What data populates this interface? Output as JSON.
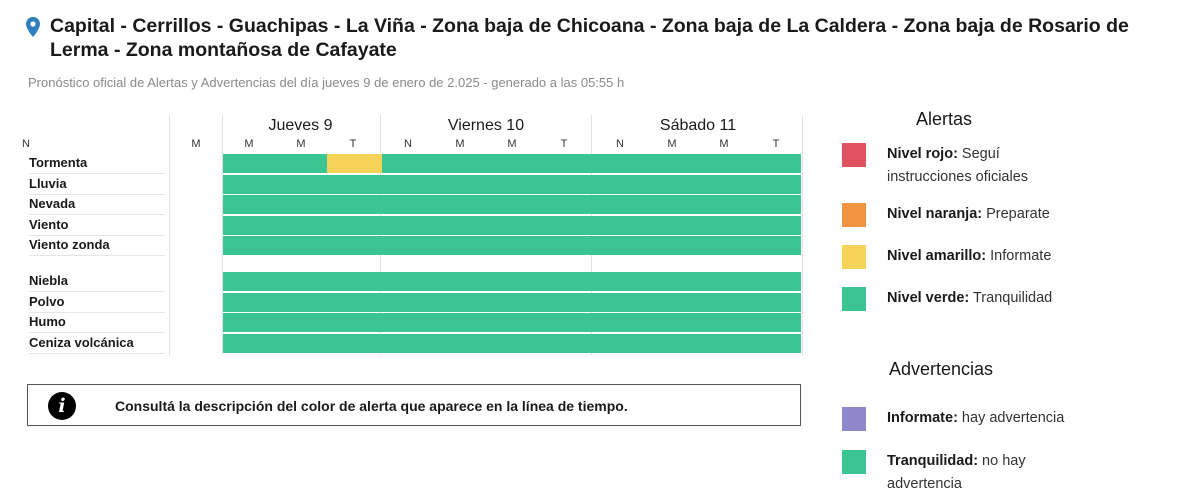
{
  "header": {
    "location_icon": "map-pin-icon",
    "title": "Capital - Cerrillos - Guachipas - La Viña - Zona baja de Chicoana - Zona baja de La Caldera - Zona baja de Rosario de Lerma - Zona montañosa de Cafayate",
    "subtitle": "Pronóstico oficial de Alertas y Advertencias del día jueves 9 de enero de 2.025 - generado a las 05:55 h"
  },
  "timeline": {
    "days": [
      {
        "label": "Jueves 9",
        "slots": [
          "M",
          "M",
          "T",
          "N"
        ]
      },
      {
        "label": "Viernes 10",
        "slots": [
          "M",
          "M",
          "T",
          "N"
        ]
      },
      {
        "label": "Sábado 11",
        "slots": [
          "M",
          "M",
          "T",
          "N"
        ]
      }
    ],
    "extra_slot": "M",
    "alert_rows": [
      {
        "label": "Tormenta",
        "levels": [
          "none",
          "verde",
          "verde",
          "amarillo",
          "verde",
          "verde",
          "verde",
          "verde",
          "verde",
          "verde",
          "verde",
          "verde"
        ]
      },
      {
        "label": "Lluvia",
        "levels": [
          "none",
          "verde",
          "verde",
          "verde",
          "verde",
          "verde",
          "verde",
          "verde",
          "verde",
          "verde",
          "verde",
          "verde"
        ]
      },
      {
        "label": "Nevada",
        "levels": [
          "none",
          "verde",
          "verde",
          "verde",
          "verde",
          "verde",
          "verde",
          "verde",
          "verde",
          "verde",
          "verde",
          "verde"
        ]
      },
      {
        "label": "Viento",
        "levels": [
          "none",
          "verde",
          "verde",
          "verde",
          "verde",
          "verde",
          "verde",
          "verde",
          "verde",
          "verde",
          "verde",
          "verde"
        ]
      },
      {
        "label": "Viento zonda",
        "levels": [
          "none",
          "verde",
          "verde",
          "verde",
          "verde",
          "verde",
          "verde",
          "verde",
          "verde",
          "verde",
          "verde",
          "verde"
        ]
      }
    ],
    "warning_rows": [
      {
        "label": "Niebla",
        "levels": [
          "none",
          "verde",
          "verde",
          "verde",
          "verde",
          "verde",
          "verde",
          "verde",
          "verde",
          "verde",
          "verde",
          "verde"
        ]
      },
      {
        "label": "Polvo",
        "levels": [
          "none",
          "verde",
          "verde",
          "verde",
          "verde",
          "verde",
          "verde",
          "verde",
          "verde",
          "verde",
          "verde",
          "verde"
        ]
      },
      {
        "label": "Humo",
        "levels": [
          "none",
          "verde",
          "verde",
          "verde",
          "verde",
          "verde",
          "verde",
          "verde",
          "verde",
          "verde",
          "verde",
          "verde"
        ]
      },
      {
        "label": "Ceniza volcánica",
        "levels": [
          "none",
          "verde",
          "verde",
          "verde",
          "verde",
          "verde",
          "verde",
          "verde",
          "verde",
          "verde",
          "verde",
          "verde"
        ]
      }
    ]
  },
  "note": {
    "icon": "info-icon",
    "icon_glyph": "i",
    "text": "Consultá la descripción del color de alerta que aparece en la línea de tiempo."
  },
  "legend": {
    "alerts_title": "Alertas",
    "alerts": [
      {
        "name": "Nivel rojo:",
        "desc": "Seguí instrucciones oficiales",
        "color": "#e05260"
      },
      {
        "name": "Nivel naranja:",
        "desc": "Preparate",
        "color": "#f19442"
      },
      {
        "name": "Nivel amarillo:",
        "desc": "Informate",
        "color": "#f5d258"
      },
      {
        "name": "Nivel verde:",
        "desc": "Tranquilidad",
        "color": "#3ac593"
      }
    ],
    "warnings_title": "Advertencias",
    "warnings": [
      {
        "name": "Informate:",
        "desc": "hay advertencia",
        "color": "#8e87c9"
      },
      {
        "name": "Tranquilidad:",
        "desc": "no hay advertencia",
        "color": "#3ac593"
      }
    ]
  },
  "colors": {
    "verde": "#3ac593",
    "amarillo": "#f5d258",
    "naranja": "#f19442",
    "rojo": "#e05260"
  }
}
